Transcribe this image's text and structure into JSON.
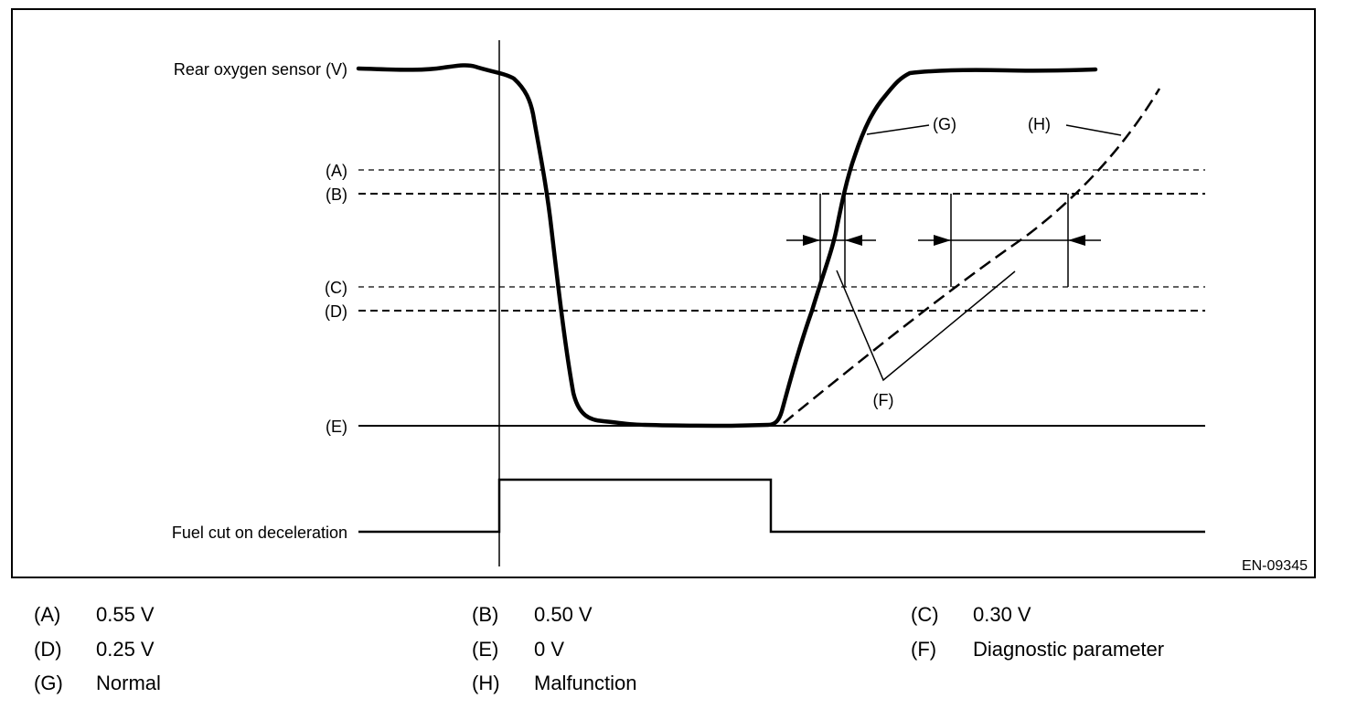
{
  "diagram": {
    "labels": {
      "rear_oxygen_sensor": "Rear oxygen sensor (V)",
      "fuel_cut": "Fuel cut on deceleration",
      "a": "(A)",
      "b": "(B)",
      "c": "(C)",
      "d": "(D)",
      "e": "(E)",
      "f": "(F)",
      "g": "(G)",
      "h": "(H)"
    },
    "figure_code": "EN-09345"
  },
  "legend": {
    "items": [
      {
        "key": "(A)",
        "value": "0.55 V"
      },
      {
        "key": "(B)",
        "value": "0.50 V"
      },
      {
        "key": "(C)",
        "value": "0.30 V"
      },
      {
        "key": "(D)",
        "value": "0.25 V"
      },
      {
        "key": "(E)",
        "value": "0 V"
      },
      {
        "key": "(F)",
        "value": "Diagnostic parameter"
      },
      {
        "key": "(G)",
        "value": "Normal"
      },
      {
        "key": "(H)",
        "value": "Malfunction"
      }
    ]
  }
}
